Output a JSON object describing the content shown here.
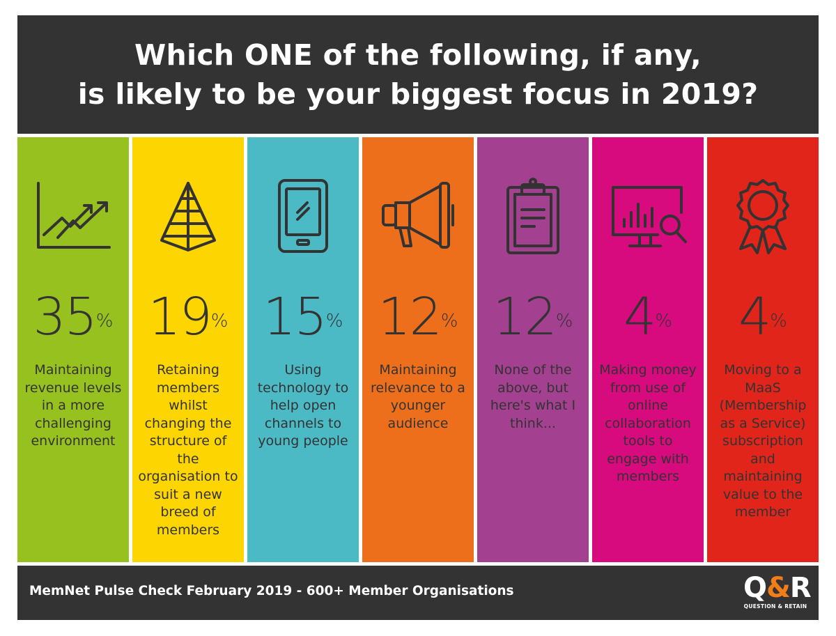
{
  "header": {
    "title_line1": "Which ONE of the following, if any,",
    "title_line2": "is likely to be your biggest focus in 2019?"
  },
  "columns": [
    {
      "color": "#97c11f",
      "icon": "growth-chart-icon",
      "percent": "35",
      "percent_sign": "%",
      "label": "Maintaining revenue levels in a more challenging environment"
    },
    {
      "color": "#fdd500",
      "icon": "pyramid-icon",
      "percent": "19",
      "percent_sign": "%",
      "label": "Retaining members whilst changing the structure of the organisation to suit a new breed of members"
    },
    {
      "color": "#4bbac5",
      "icon": "tablet-icon",
      "percent": "15",
      "percent_sign": "%",
      "label": "Using technology to help open channels to young people"
    },
    {
      "color": "#ee6f1b",
      "icon": "megaphone-icon",
      "percent": "12",
      "percent_sign": "%",
      "label": "Maintaining relevance to a younger audience"
    },
    {
      "color": "#a3408f",
      "icon": "clipboard-icon",
      "percent": "12",
      "percent_sign": "%",
      "label": "None of the above, but here's what I think..."
    },
    {
      "color": "#d70b7d",
      "icon": "analytics-monitor-icon",
      "percent": "4",
      "percent_sign": "%",
      "label": "Making money from use of online collaboration tools to engage with members"
    },
    {
      "color": "#e1251b",
      "icon": "award-rosette-icon",
      "percent": "4",
      "percent_sign": "%",
      "label": "Moving to a MaaS (Membership as a Service) subscription and maintaining value to the member"
    }
  ],
  "footer": {
    "text": "MemNet Pulse Check February 2019 - 600+ Member Organisations",
    "logo": {
      "q": "Q",
      "amp": "&",
      "r": "R",
      "tagline": "QUESTION & RETAIN",
      "accent": "#f07d18"
    }
  }
}
